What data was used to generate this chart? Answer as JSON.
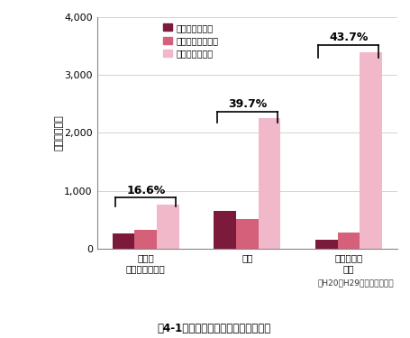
{
  "categories": [
    "交差点\n（付近を含む）",
    "単路",
    "一般交通の\n場所"
  ],
  "series": [
    {
      "label": "四輪車対二輪車",
      "values": [
        270,
        650,
        150
      ],
      "color": "#7b1a3a"
    },
    {
      "label": "四輪車対自転車等",
      "values": [
        330,
        510,
        285
      ],
      "color": "#d4607a"
    },
    {
      "label": "四輪車対歩行者",
      "values": [
        760,
        2250,
        3400
      ],
      "color": "#f0b8c8"
    }
  ],
  "ylim": [
    0,
    4000
  ],
  "yticks": [
    0,
    1000,
    2000,
    3000,
    4000
  ],
  "ytick_labels": [
    "0",
    "1,000",
    "2,000",
    "3,000",
    "4,000"
  ],
  "ylabel": "死亡重傷者数",
  "annotations": [
    {
      "text": "16.6%",
      "group": 0,
      "bar_tops": [
        270,
        330,
        760
      ]
    },
    {
      "text": "39.7%",
      "group": 1,
      "bar_tops": [
        650,
        510,
        2250
      ]
    },
    {
      "text": "43.7%",
      "group": 2,
      "bar_tops": [
        150,
        285,
        3400
      ]
    }
  ],
  "footnote": "（H20～H29年の累計人数）",
  "title": "図4-1　死亡重傷後退事故の発生場所",
  "background_color": "#ffffff",
  "bar_width": 0.22,
  "group_positions": [
    0,
    1.0,
    2.0
  ]
}
